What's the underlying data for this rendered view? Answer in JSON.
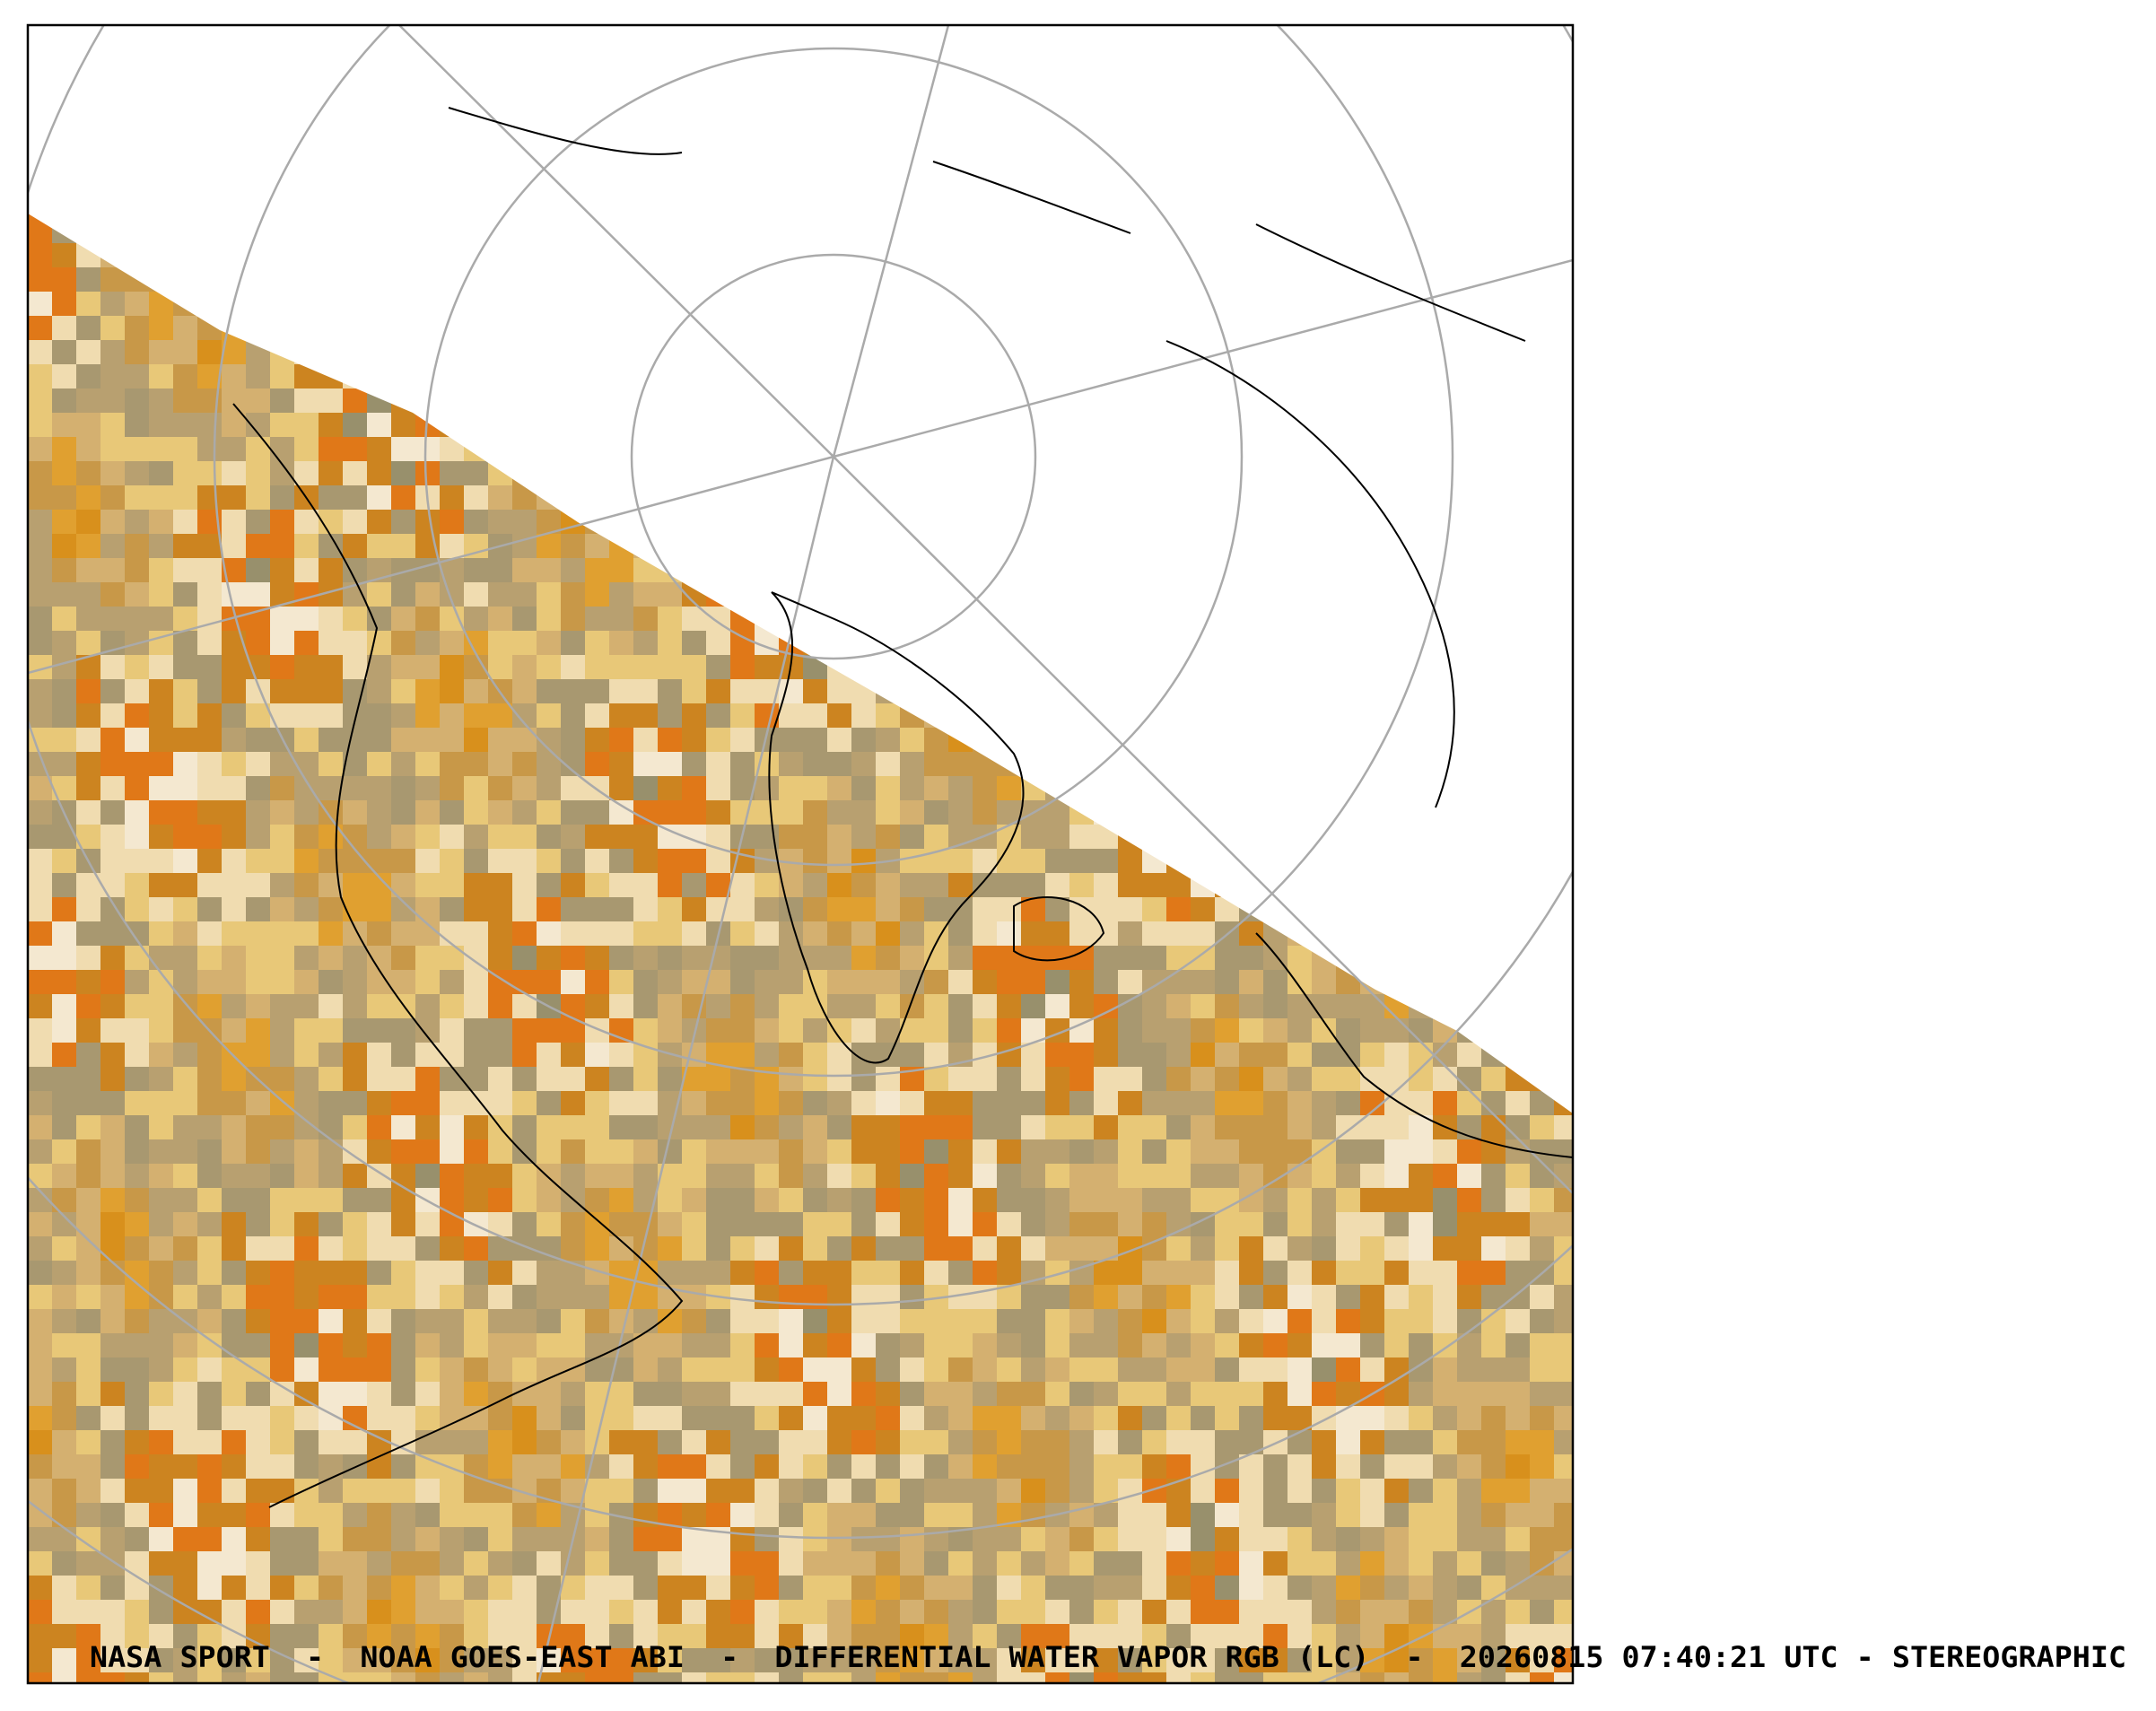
{
  "caption": "NASA SPORT  -  NOAA GOES-EAST ABI  -  DIFFERENTIAL WATER VAPOR RGB (LC)  -  20260815 07:40:21 UTC - STEREOGRAPHIC"
}
